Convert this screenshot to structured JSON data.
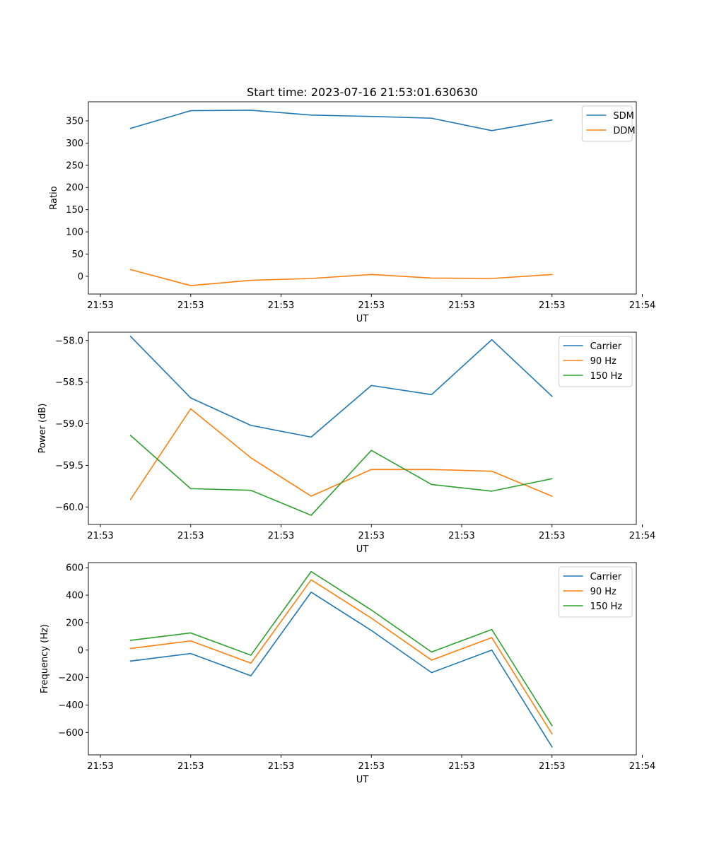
{
  "title": "Start time: 2023-07-16 21:53:01.630630",
  "colors": {
    "blue": "#1f77b4",
    "orange": "#ff7f0e",
    "green": "#2ca02c"
  },
  "chart_data": [
    {
      "type": "line",
      "title": "Start time: 2023-07-16 21:53:01.630630",
      "xlabel": "UT",
      "ylabel": "Ratio",
      "x": [
        1,
        2,
        3,
        4,
        5,
        6,
        7,
        8
      ],
      "xlim": [
        0.3,
        9.4
      ],
      "xticks": [
        0.5,
        2,
        3.5,
        5,
        6.5,
        8,
        9.5
      ],
      "xtick_labels": [
        "21:53",
        "21:53",
        "21:53",
        "21:53",
        "21:53",
        "21:53",
        "21:54"
      ],
      "ylim": [
        -40,
        393
      ],
      "yticks": [
        0,
        50,
        100,
        150,
        200,
        250,
        300,
        350
      ],
      "ytick_labels": [
        "0",
        "50",
        "100",
        "150",
        "200",
        "250",
        "300",
        "350"
      ],
      "legend_position": "top-right",
      "series": [
        {
          "name": "SDM",
          "color": "blue",
          "values": [
            333,
            373,
            374,
            363,
            360,
            356,
            328,
            352
          ]
        },
        {
          "name": "DDM",
          "color": "orange",
          "values": [
            15,
            -21,
            -9,
            -5,
            4,
            -4,
            -5,
            4
          ]
        }
      ]
    },
    {
      "type": "line",
      "xlabel": "UT",
      "ylabel": "Power (dB)",
      "x": [
        1,
        2,
        3,
        4,
        5,
        6,
        7,
        8
      ],
      "xlim": [
        0.3,
        9.4
      ],
      "xticks": [
        0.5,
        2,
        3.5,
        5,
        6.5,
        8,
        9.5
      ],
      "xtick_labels": [
        "21:53",
        "21:53",
        "21:53",
        "21:53",
        "21:53",
        "21:53",
        "21:54"
      ],
      "ylim": [
        -60.21,
        -57.9
      ],
      "yticks": [
        -60.0,
        -59.5,
        -59.0,
        -58.5,
        -58.0
      ],
      "ytick_labels": [
        "−60.0",
        "−59.5",
        "−59.0",
        "−58.5",
        "−58.0"
      ],
      "legend_position": "top-right",
      "series": [
        {
          "name": "Carrier",
          "color": "blue",
          "values": [
            -57.95,
            -58.69,
            -59.02,
            -59.16,
            -58.54,
            -58.65,
            -57.99,
            -58.67
          ]
        },
        {
          "name": "90 Hz",
          "color": "orange",
          "values": [
            -59.91,
            -58.82,
            -59.41,
            -59.87,
            -59.55,
            -59.55,
            -59.57,
            -59.87
          ]
        },
        {
          "name": "150 Hz",
          "color": "green",
          "values": [
            -59.14,
            -59.78,
            -59.8,
            -60.1,
            -59.32,
            -59.73,
            -59.81,
            -59.66
          ]
        }
      ]
    },
    {
      "type": "line",
      "xlabel": "UT",
      "ylabel": "Frequency (Hz)",
      "x": [
        1,
        2,
        3,
        4,
        5,
        6,
        7,
        8
      ],
      "xlim": [
        0.3,
        9.4
      ],
      "xticks": [
        0.5,
        2,
        3.5,
        5,
        6.5,
        8,
        9.5
      ],
      "xtick_labels": [
        "21:53",
        "21:53",
        "21:53",
        "21:53",
        "21:53",
        "21:53",
        "21:54"
      ],
      "ylim": [
        -763,
        637
      ],
      "yticks": [
        -600,
        -400,
        -200,
        0,
        200,
        400,
        600
      ],
      "ytick_labels": [
        "−600",
        "−400",
        "−200",
        "0",
        "200",
        "400",
        "600"
      ],
      "legend_position": "top-right",
      "series": [
        {
          "name": "Carrier",
          "color": "blue",
          "values": [
            -80,
            -25,
            -187,
            422,
            143,
            -164,
            0,
            -705
          ]
        },
        {
          "name": "90 Hz",
          "color": "orange",
          "values": [
            12,
            67,
            -95,
            512,
            233,
            -73,
            91,
            -610
          ]
        },
        {
          "name": "150 Hz",
          "color": "green",
          "values": [
            71,
            125,
            -37,
            572,
            292,
            -14,
            150,
            -550
          ]
        }
      ]
    }
  ]
}
